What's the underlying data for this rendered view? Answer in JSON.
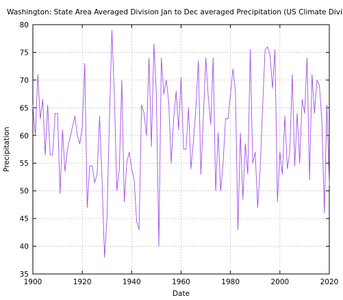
{
  "chart_data": {
    "type": "line",
    "title": "Washington: State Area Averaged Division  Jan to Dec averaged Precipitation  (US Climate Division)",
    "xlabel": "Date",
    "ylabel": "Precipitation",
    "xlim": [
      1900,
      2020
    ],
    "ylim": [
      35,
      80
    ],
    "x_ticks": [
      1900,
      1920,
      1940,
      1960,
      1980,
      2000,
      2020
    ],
    "y_ticks": [
      35,
      40,
      45,
      50,
      55,
      60,
      65,
      70,
      75,
      80
    ],
    "grid": true,
    "line_color": "#a04ee8",
    "series": [
      {
        "x": [
          1900,
          1901,
          1902,
          1903,
          1904,
          1905,
          1906,
          1907,
          1908,
          1909,
          1910,
          1911,
          1912,
          1913,
          1914,
          1915,
          1916,
          1917,
          1918,
          1919,
          1920,
          1921,
          1922,
          1923,
          1924,
          1925,
          1926,
          1927,
          1928,
          1929,
          1930,
          1931,
          1932,
          1933,
          1934,
          1935,
          1936,
          1937,
          1938,
          1939,
          1940,
          1941,
          1942,
          1943,
          1944,
          1945,
          1946,
          1947,
          1948,
          1949,
          1950,
          1951,
          1952,
          1953,
          1954,
          1955,
          1956,
          1957,
          1958,
          1959,
          1960,
          1961,
          1962,
          1963,
          1964,
          1965,
          1966,
          1967,
          1968,
          1969,
          1970,
          1971,
          1972,
          1973,
          1974,
          1975,
          1976,
          1977,
          1978,
          1979,
          1980,
          1981,
          1982,
          1983,
          1984,
          1985,
          1986,
          1987,
          1988,
          1989,
          1990,
          1991,
          1992,
          1993,
          1994,
          1995,
          1996,
          1997,
          1998,
          1999,
          2000,
          2001,
          2002,
          2003,
          2004,
          2005,
          2006,
          2007,
          2008,
          2009,
          2010,
          2011,
          2012,
          2013,
          2014,
          2015,
          2016,
          2017,
          2018,
          2019,
          2020
        ],
        "values": [
          65.5,
          60.0,
          71.0,
          63.0,
          66.5,
          56.5,
          65.5,
          56.5,
          56.5,
          64.0,
          64.0,
          49.5,
          61.0,
          53.5,
          57.5,
          59.5,
          61.5,
          63.5,
          60.0,
          58.5,
          61.5,
          73.0,
          47.0,
          54.5,
          54.5,
          51.5,
          53.0,
          63.5,
          52.0,
          38.0,
          45.0,
          63.0,
          79.0,
          67.0,
          50.0,
          54.0,
          70.0,
          48.0,
          55.0,
          57.0,
          54.0,
          52.0,
          44.5,
          43.0,
          65.5,
          64.0,
          60.0,
          74.0,
          58.0,
          76.5,
          67.5,
          40.0,
          74.0,
          67.5,
          70.0,
          66.0,
          55.0,
          63.0,
          68.0,
          61.0,
          70.5,
          57.5,
          57.5,
          65.0,
          54.0,
          59.0,
          65.0,
          73.5,
          53.0,
          63.0,
          74.0,
          67.0,
          62.0,
          74.0,
          50.0,
          60.5,
          50.0,
          55.0,
          63.0,
          63.0,
          67.5,
          72.0,
          68.0,
          43.0,
          60.5,
          48.5,
          58.5,
          53.0,
          75.5,
          55.0,
          57.0,
          47.0,
          54.0,
          65.0,
          75.5,
          76.0,
          74.5,
          68.5,
          75.5,
          48.0,
          57.0,
          53.0,
          63.5,
          54.0,
          57.0,
          71.0,
          54.5,
          64.0,
          55.0,
          66.5,
          64.0,
          74.0,
          52.0,
          71.0,
          64.0,
          70.0,
          69.0,
          62.5,
          46.0,
          65.5,
          51.0
        ]
      }
    ]
  }
}
